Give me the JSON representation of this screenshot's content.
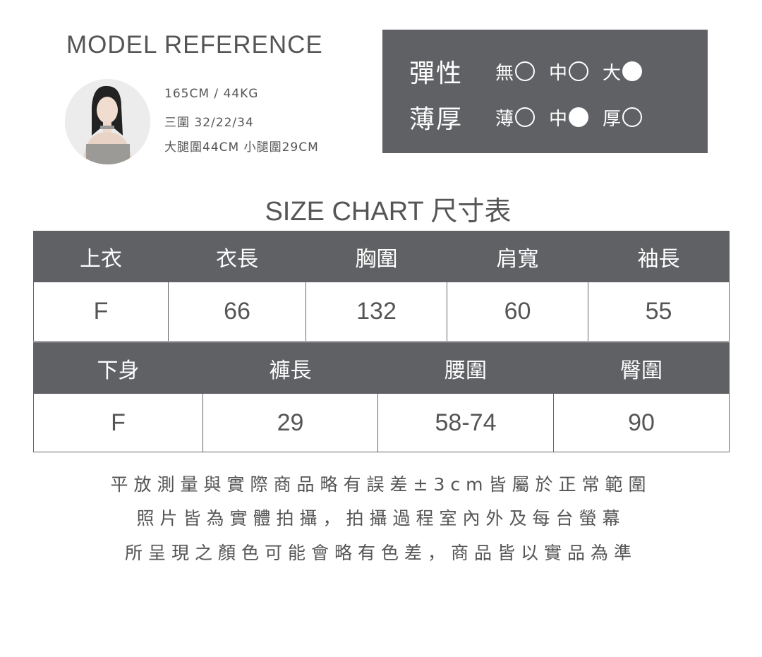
{
  "model": {
    "title": "MODEL REFERENCE",
    "height_weight": "165CM / 44KG",
    "measurements": "三圍 32/22/34",
    "thigh_calf": "大腿圍44CM 小腿圍29CM"
  },
  "properties": [
    {
      "label": "彈性",
      "options": [
        {
          "label": "無",
          "selected": false
        },
        {
          "label": "中",
          "selected": false
        },
        {
          "label": "大",
          "selected": true
        }
      ]
    },
    {
      "label": "薄厚",
      "options": [
        {
          "label": "薄",
          "selected": false
        },
        {
          "label": "中",
          "selected": true
        },
        {
          "label": "厚",
          "selected": false
        }
      ]
    }
  ],
  "size_chart": {
    "title": "SIZE CHART 尺寸表",
    "top": {
      "headers": [
        "上衣",
        "衣長",
        "胸圍",
        "肩寬",
        "袖長"
      ],
      "rows": [
        [
          "F",
          "66",
          "132",
          "60",
          "55"
        ]
      ]
    },
    "bottom": {
      "headers": [
        "下身",
        "褲長",
        "腰圍",
        "臀圍"
      ],
      "rows": [
        [
          "F",
          "29",
          "58-74",
          "90"
        ]
      ]
    }
  },
  "notes": [
    "平放測量與實際商品略有誤差±3cm皆屬於正常範圍",
    "照片皆為實體拍攝，拍攝過程室內外及每台螢幕",
    "所呈現之顏色可能會略有色差，商品皆以實品為準"
  ],
  "colors": {
    "panel": "#5f6164",
    "text": "#555555"
  }
}
